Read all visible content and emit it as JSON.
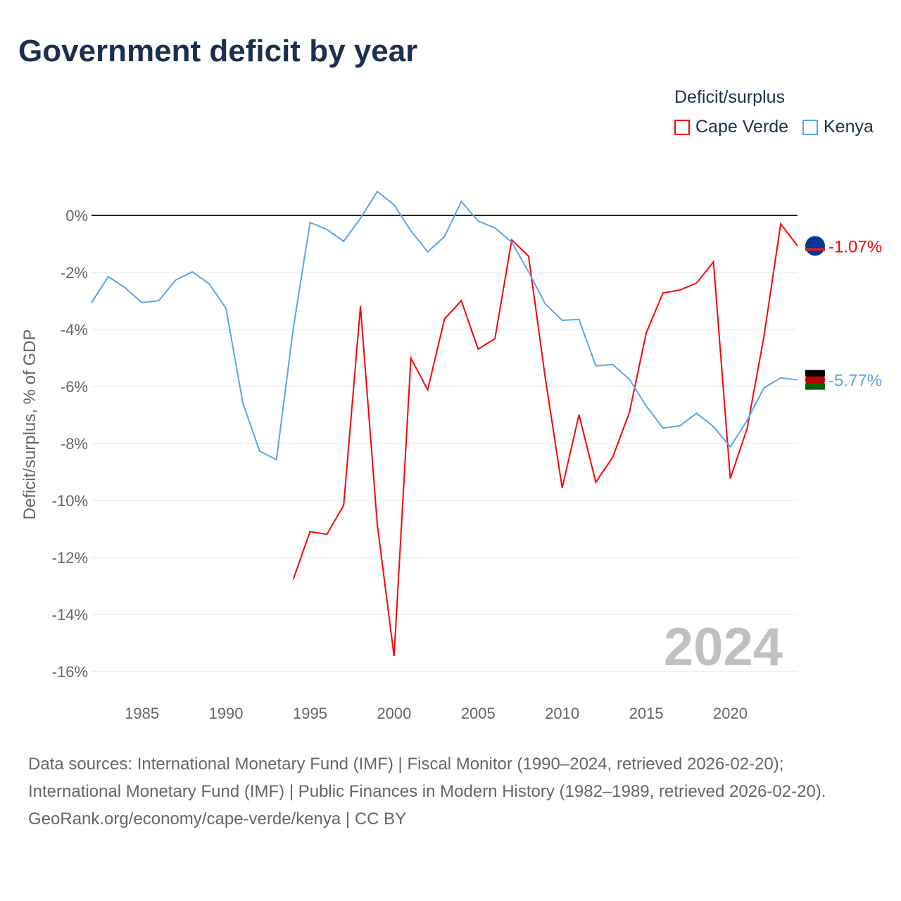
{
  "title": "Government deficit by year",
  "legend_title": "Deficit/surplus",
  "footer": {
    "sources": "Data sources: International Monetary Fund (IMF) | Fiscal Monitor (1990–2024, retrieved 2026-02-20); International Monetary Fund (IMF) | Public Finances in Modern History (1982–1989, retrieved 2026-02-20).",
    "credit": "GeoRank.org/economy/cape-verde/kenya | CC BY"
  },
  "chart_data": {
    "type": "line",
    "title": "Government deficit by year",
    "xlabel": "",
    "ylabel": "Deficit/surplus, % of GDP",
    "xlim": [
      1982,
      2024
    ],
    "ylim": [
      -17,
      1.5
    ],
    "yticks": [
      0,
      -2,
      -4,
      -6,
      -8,
      -10,
      -12,
      -14,
      -16
    ],
    "ytick_labels": [
      "0%",
      "-2%",
      "-4%",
      "-6%",
      "-8%",
      "-10%",
      "-12%",
      "-14%",
      "-16%"
    ],
    "xticks": [
      1985,
      1990,
      1995,
      2000,
      2005,
      2010,
      2015,
      2020
    ],
    "xtick_labels": [
      "1985",
      "1990",
      "1995",
      "2000",
      "2005",
      "2010",
      "2015",
      "2020"
    ],
    "year_watermark": "2024",
    "legend_position": "top-right",
    "series": [
      {
        "name": "Cape Verde",
        "color": "#ff0000",
        "end_label": "-1.07%",
        "x": [
          1994,
          1995,
          1996,
          1997,
          1998,
          1999,
          2000,
          2001,
          2002,
          2003,
          2004,
          2005,
          2006,
          2007,
          2008,
          2009,
          2010,
          2011,
          2012,
          2013,
          2014,
          2015,
          2016,
          2017,
          2018,
          2019,
          2020,
          2021,
          2022,
          2023,
          2024
        ],
        "values": [
          -12.77,
          -11.09,
          -11.19,
          -10.17,
          -3.19,
          -10.84,
          -15.46,
          -5.01,
          -6.12,
          -3.63,
          -2.99,
          -4.69,
          -4.32,
          -0.86,
          -1.43,
          -5.73,
          -9.56,
          -6.99,
          -9.36,
          -8.49,
          -6.91,
          -4.12,
          -2.72,
          -2.62,
          -2.37,
          -1.63,
          -9.23,
          -7.48,
          -4.25,
          -0.3,
          -1.07
        ]
      },
      {
        "name": "Kenya",
        "color": "#5aa5ea",
        "end_label": "-5.77%",
        "x": [
          1982,
          1983,
          1984,
          1985,
          1986,
          1987,
          1988,
          1989,
          1990,
          1991,
          1992,
          1993,
          1994,
          1995,
          1996,
          1997,
          1998,
          1999,
          2000,
          2001,
          2002,
          2003,
          2004,
          2005,
          2006,
          2007,
          2008,
          2009,
          2010,
          2011,
          2012,
          2013,
          2014,
          2015,
          2016,
          2017,
          2018,
          2019,
          2020,
          2021,
          2022,
          2023,
          2024
        ],
        "values": [
          -3.06,
          -2.15,
          -2.54,
          -3.06,
          -2.99,
          -2.27,
          -1.98,
          -2.4,
          -3.26,
          -6.57,
          -8.27,
          -8.57,
          -3.98,
          -0.25,
          -0.49,
          -0.91,
          -0.1,
          0.84,
          0.37,
          -0.54,
          -1.28,
          -0.74,
          0.49,
          -0.2,
          -0.44,
          -0.94,
          -1.98,
          -3.11,
          -3.68,
          -3.65,
          -5.28,
          -5.23,
          -5.75,
          -6.69,
          -7.46,
          -7.38,
          -6.94,
          -7.41,
          -8.12,
          -7.19,
          -6.05,
          -5.7,
          -5.77
        ]
      }
    ]
  }
}
